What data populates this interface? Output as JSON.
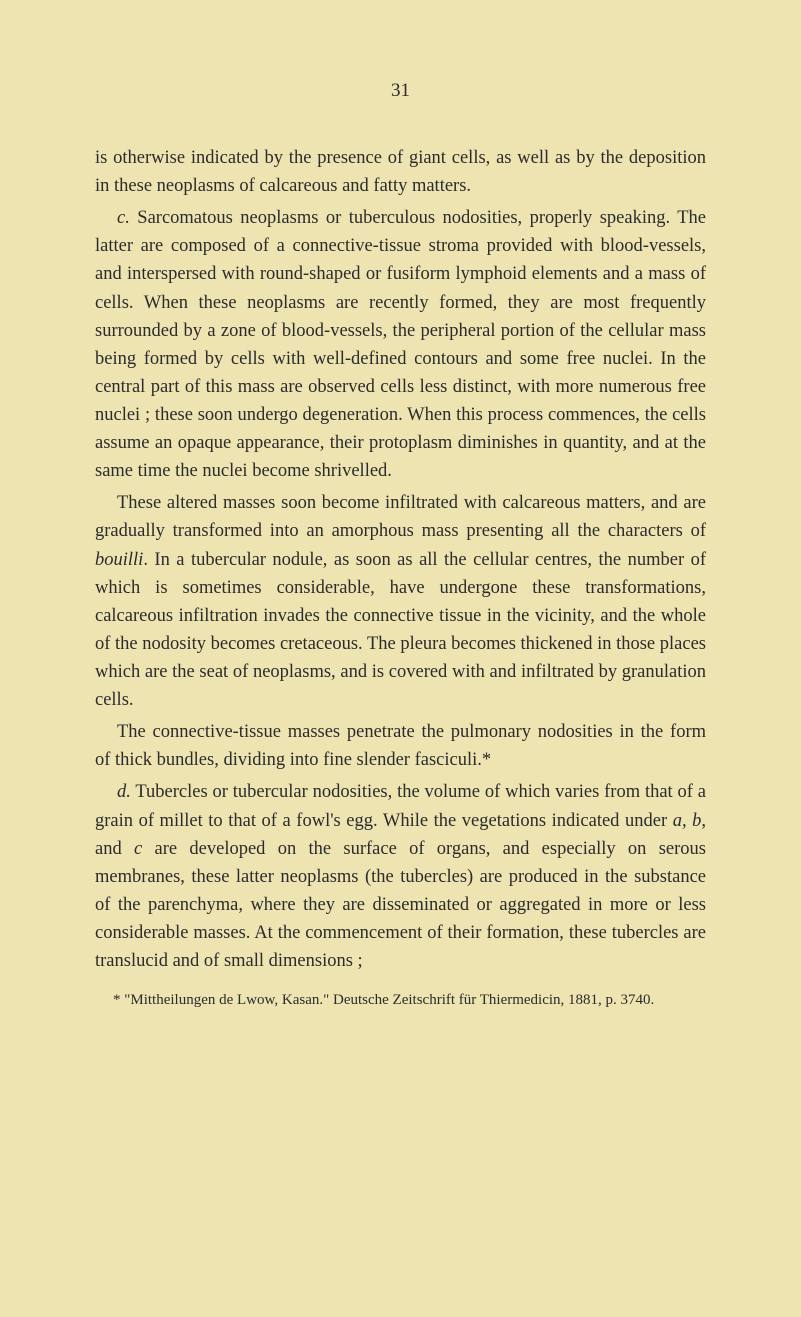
{
  "page_number": "31",
  "paragraphs": [
    {
      "indented": false,
      "text": "is otherwise indicated by the presence of giant cells, as well as by the deposition in these neoplasms of calcareous and fatty matters."
    },
    {
      "indented": true,
      "html": "<span class=\"italic\">c.</span> Sarcomatous neoplasms or tuberculous nodosities, properly speaking. The latter are composed of a connective-tissue stroma provided with blood-vessels, and interspersed with round-shaped or fusiform lymphoid elements and a mass of cells. When these neoplasms are recently formed, they are most frequently surrounded by a zone of blood-vessels, the peripheral portion of the cellular mass being formed by cells with well-defined contours and some free nuclei. In the central part of this mass are observed cells less distinct, with more numerous free nuclei ; these soon undergo degeneration. When this process commences, the cells assume an opaque appearance, their protoplasm diminishes in quantity, and at the same time the nuclei become shrivelled."
    },
    {
      "indented": true,
      "html": "These altered masses soon become infiltrated with calcareous matters, and are gradually transformed into an amorphous mass presenting all the characters of <span class=\"italic\">bouilli</span>. In a tubercular nodule, as soon as all the cellular centres, the number of which is sometimes considerable, have undergone these transformations, calcareous infiltration invades the connective tissue in the vicinity, and the whole of the nodosity becomes cretaceous. The pleura becomes thickened in those places which are the seat of neoplasms, and is covered with and infiltrated by granulation cells."
    },
    {
      "indented": true,
      "html": "The connective-tissue masses penetrate the pulmonary nodosities in the form of thick bundles, dividing into fine slender fasciculi.*"
    },
    {
      "indented": true,
      "html": "<span class=\"italic\">d.</span> Tubercles or tubercular nodosities, the volume of which varies from that of a grain of millet to that of a fowl's egg. While the vegetations indicated under <span class=\"italic\">a, b,</span> and <span class=\"italic\">c</span> are developed on the surface of organs, and especially on serous membranes, these latter neoplasms (the tubercles) are produced in the substance of the parenchyma, where they are disseminated or aggregated in more or less considerable masses. At the commencement of their formation, these tubercles are translucid and of small dimensions ;"
    }
  ],
  "footnote": "* \"Mittheilungen de Lwow, Kasan.\" Deutsche Zeitschrift für Thiermedicin, 1881, p. 3740."
}
